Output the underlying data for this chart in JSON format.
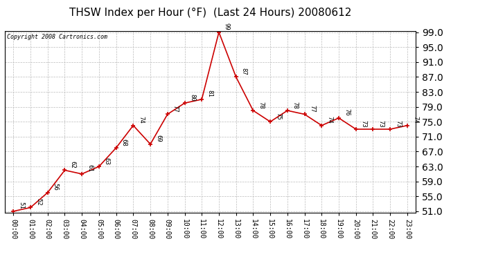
{
  "title": "THSW Index per Hour (°F)  (Last 24 Hours) 20080612",
  "copyright": "Copyright 2008 Cartronics.com",
  "hours": [
    "00:00",
    "01:00",
    "02:00",
    "03:00",
    "04:00",
    "05:00",
    "06:00",
    "07:00",
    "08:00",
    "09:00",
    "10:00",
    "11:00",
    "12:00",
    "13:00",
    "14:00",
    "15:00",
    "16:00",
    "17:00",
    "18:00",
    "19:00",
    "20:00",
    "21:00",
    "22:00",
    "23:00"
  ],
  "values": [
    51,
    52,
    56,
    62,
    61,
    63,
    68,
    74,
    69,
    77,
    80,
    81,
    99,
    87,
    78,
    75,
    78,
    77,
    74,
    76,
    73,
    73,
    73,
    74
  ],
  "ylim_min": 51.0,
  "ylim_max": 99.0,
  "yticks": [
    51.0,
    55.0,
    59.0,
    63.0,
    67.0,
    71.0,
    75.0,
    79.0,
    83.0,
    87.0,
    91.0,
    95.0,
    99.0
  ],
  "line_color": "#cc0000",
  "marker_color": "#cc0000",
  "bg_color": "#ffffff",
  "grid_color": "#bbbbbb",
  "title_fontsize": 11,
  "label_fontsize": 7,
  "annotation_fontsize": 6.5,
  "copyright_fontsize": 6
}
